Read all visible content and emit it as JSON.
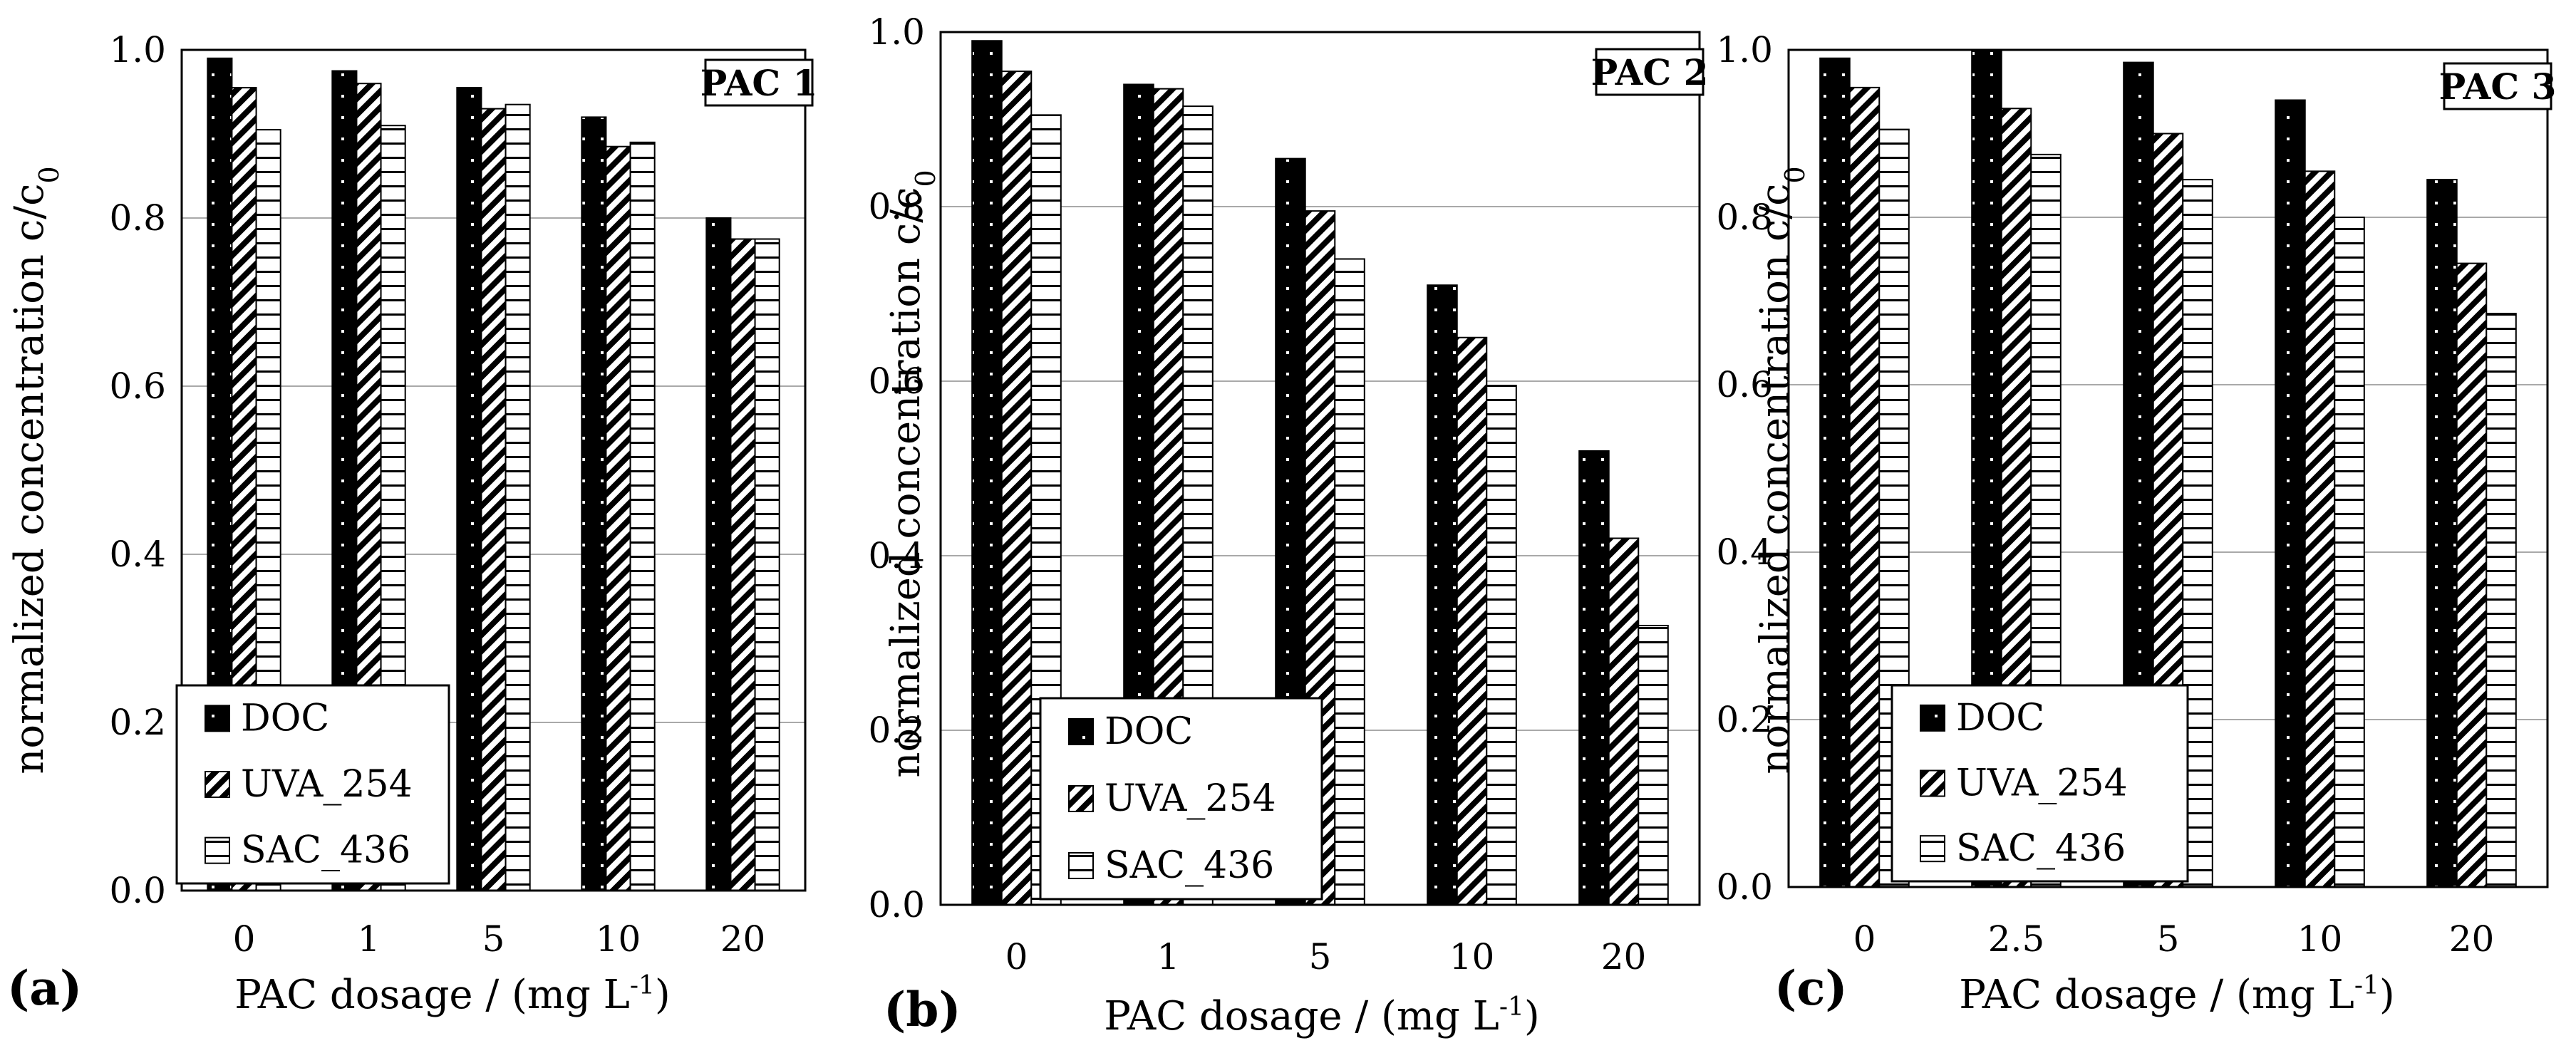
{
  "chart_data": [
    {
      "type": "bar",
      "panel_label": "(a)",
      "title": "PAC 1",
      "xlabel": "PAC dosage / (mg L",
      "xlabel_sup": "-1",
      "xlabel_end": ")",
      "ylabel": "normalized concentration c/c",
      "ylabel_sub": "0",
      "ylim": [
        0,
        1
      ],
      "yticks": [
        "0.0",
        "0.2",
        "0.4",
        "0.6",
        "0.8",
        "1.0"
      ],
      "categories": [
        "0",
        "1",
        "5",
        "10",
        "20"
      ],
      "series": [
        {
          "name": "DOC",
          "values": [
            0.99,
            0.975,
            0.955,
            0.92,
            0.8
          ]
        },
        {
          "name": "UVA_254",
          "values": [
            0.955,
            0.96,
            0.93,
            0.885,
            0.775
          ]
        },
        {
          "name": "SAC_436",
          "values": [
            0.905,
            0.91,
            0.935,
            0.89,
            0.775
          ]
        }
      ],
      "legend": {
        "position": "bottom-left",
        "entries": [
          "DOC",
          "UVA_254",
          "SAC_436"
        ]
      },
      "grid": true
    },
    {
      "type": "bar",
      "panel_label": "(b)",
      "title": "PAC 2",
      "xlabel": "PAC dosage / (mg L",
      "xlabel_sup": "-1",
      "xlabel_end": ")",
      "ylabel": "normalized concentration c/c",
      "ylabel_sub": "0",
      "ylim": [
        0,
        1
      ],
      "yticks": [
        "0.0",
        "0.2",
        "0.4",
        "0.6",
        "0.8",
        "1.0"
      ],
      "categories": [
        "0",
        "1",
        "5",
        "10",
        "20"
      ],
      "series": [
        {
          "name": "DOC",
          "values": [
            0.99,
            0.94,
            0.855,
            0.71,
            0.52
          ]
        },
        {
          "name": "UVA_254",
          "values": [
            0.955,
            0.935,
            0.795,
            0.65,
            0.42
          ]
        },
        {
          "name": "SAC_436",
          "values": [
            0.905,
            0.915,
            0.74,
            0.595,
            0.32
          ]
        }
      ],
      "legend": {
        "position": "bottom-left",
        "entries": [
          "DOC",
          "UVA_254",
          "SAC_436"
        ]
      },
      "grid": true
    },
    {
      "type": "bar",
      "panel_label": "(c)",
      "title": "PAC 3",
      "xlabel": "PAC dosage / (mg L",
      "xlabel_sup": "-1",
      "xlabel_end": ")",
      "ylabel": "normalized concentration c/c",
      "ylabel_sub": "0",
      "ylim": [
        0,
        1
      ],
      "yticks": [
        "0.0",
        "0.2",
        "0.4",
        "0.6",
        "0.8",
        "1.0"
      ],
      "categories": [
        "0",
        "2.5",
        "5",
        "10",
        "20"
      ],
      "series": [
        {
          "name": "DOC",
          "values": [
            0.99,
            1.0,
            0.985,
            0.94,
            0.845
          ]
        },
        {
          "name": "UVA_254",
          "values": [
            0.955,
            0.93,
            0.9,
            0.855,
            0.745
          ]
        },
        {
          "name": "SAC_436",
          "values": [
            0.905,
            0.875,
            0.845,
            0.8,
            0.685
          ]
        }
      ],
      "legend": {
        "position": "bottom-left",
        "entries": [
          "DOC",
          "UVA_254",
          "SAC_436"
        ]
      },
      "grid": true
    }
  ]
}
